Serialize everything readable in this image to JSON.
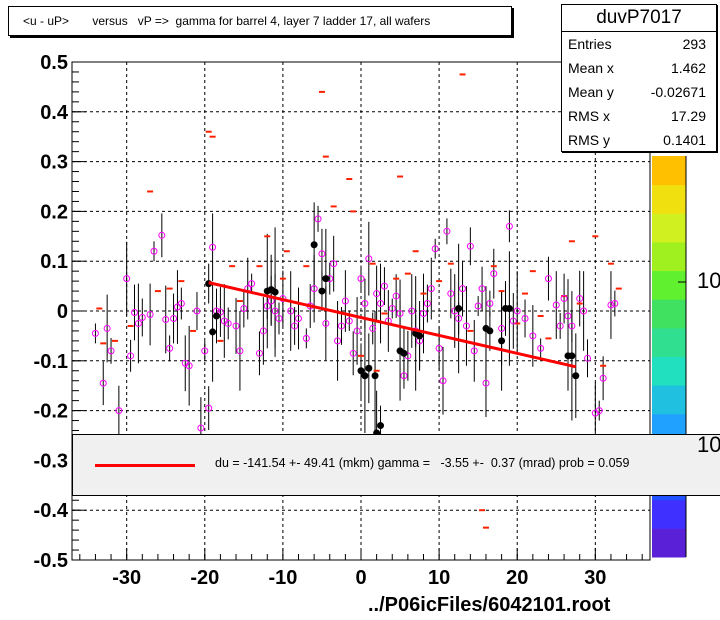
{
  "chart_data": {
    "type": "scatter",
    "title": "<u - uP>       versus   vP =>  gamma for barrel 4, layer 7 ladder 17, all wafers",
    "xlim": [
      -37,
      37
    ],
    "ylim": [
      -0.5,
      0.5
    ],
    "x_ticks": [
      "-30",
      "-20",
      "-10",
      "0",
      "10",
      "20",
      "30"
    ],
    "y_ticks": [
      "0.5",
      "0.4",
      "0.3",
      "0.2",
      "0.1",
      "0",
      "-0.1",
      "-0.2",
      "-0.3",
      "-0.4",
      "-0.5"
    ],
    "grid": true,
    "fit_line": {
      "x": [
        -19.5,
        27.5
      ],
      "y": [
        0.057,
        -0.112
      ],
      "color": "#ff0000"
    },
    "profile_points_black": [
      [
        -19.5,
        0.055
      ],
      [
        -19,
        -0.042
      ],
      [
        -18.5,
        -0.01
      ],
      [
        -12,
        0.04
      ],
      [
        -11.5,
        0.043
      ],
      [
        -11,
        0.038
      ],
      [
        -6,
        0.133
      ],
      [
        -5,
        0.04
      ],
      [
        -4.5,
        0.065
      ],
      [
        0,
        -0.12
      ],
      [
        0.5,
        -0.13
      ],
      [
        1,
        -0.115
      ],
      [
        1.8,
        -0.13
      ],
      [
        2,
        -0.245
      ],
      [
        2.5,
        -0.23
      ],
      [
        5,
        -0.08
      ],
      [
        5.5,
        -0.085
      ],
      [
        7,
        -0.045
      ],
      [
        7.5,
        -0.05
      ],
      [
        12.5,
        0.005
      ],
      [
        16,
        -0.035
      ],
      [
        16.5,
        -0.04
      ],
      [
        18,
        -0.06
      ],
      [
        18.5,
        0.005
      ],
      [
        19,
        0.005
      ],
      [
        26.5,
        -0.09
      ],
      [
        27,
        -0.09
      ],
      [
        27.5,
        -0.13
      ]
    ],
    "profile_points_magenta": [
      [
        -34,
        -0.045
      ],
      [
        -33,
        -0.145
      ],
      [
        -32.5,
        -0.035
      ],
      [
        -32,
        -0.08
      ],
      [
        -31,
        -0.2
      ],
      [
        -30,
        0.065
      ],
      [
        -29.5,
        -0.09
      ],
      [
        -29,
        -0.003
      ],
      [
        -28.5,
        -0.025
      ],
      [
        -28,
        -0.013
      ],
      [
        -27,
        -0.007
      ],
      [
        -26.5,
        0.12
      ],
      [
        -25.5,
        0.152
      ],
      [
        -25,
        -0.017
      ],
      [
        -24.5,
        -0.075
      ],
      [
        -24,
        -0.015
      ],
      [
        -23.5,
        0.008
      ],
      [
        -23,
        0.015
      ],
      [
        -22.5,
        -0.105
      ],
      [
        -22,
        -0.11
      ],
      [
        -21,
        0.0
      ],
      [
        -20.5,
        -0.235
      ],
      [
        -20,
        -0.08
      ],
      [
        -19.5,
        -0.195
      ],
      [
        -19,
        0.128
      ],
      [
        -18.5,
        0.0
      ],
      [
        -18,
        -0.002
      ],
      [
        -17.5,
        -0.02
      ],
      [
        -17,
        -0.025
      ],
      [
        -16,
        -0.03
      ],
      [
        -15.5,
        -0.08
      ],
      [
        -15,
        0.005
      ],
      [
        -14.5,
        0.045
      ],
      [
        -14,
        0.055
      ],
      [
        -13,
        -0.085
      ],
      [
        -12.5,
        -0.04
      ],
      [
        -12,
        0.01
      ],
      [
        -11.5,
        0.02
      ],
      [
        -11,
        0.0
      ],
      [
        -10.5,
        -0.015
      ],
      [
        -10,
        0.025
      ],
      [
        -9,
        0.0
      ],
      [
        -8.5,
        -0.03
      ],
      [
        -8,
        -0.015
      ],
      [
        -7,
        -0.055
      ],
      [
        -6.5,
        0.01
      ],
      [
        -6,
        0.045
      ],
      [
        -5.5,
        0.185
      ],
      [
        -5,
        0.115
      ],
      [
        -4.5,
        -0.025
      ],
      [
        -4,
        0.065
      ],
      [
        -3.5,
        0.095
      ],
      [
        -3,
        -0.06
      ],
      [
        -2.5,
        -0.03
      ],
      [
        -2,
        0.02
      ],
      [
        -1.5,
        -0.02
      ],
      [
        -1,
        -0.085
      ],
      [
        -0.5,
        -0.04
      ],
      [
        0,
        0.065
      ],
      [
        0.5,
        0.015
      ],
      [
        1,
        0.105
      ],
      [
        1.5,
        -0.035
      ],
      [
        2,
        0.035
      ],
      [
        2.5,
        0.015
      ],
      [
        3,
        0.05
      ],
      [
        3.5,
        -0.02
      ],
      [
        4,
        0.005
      ],
      [
        4.5,
        0.03
      ],
      [
        5,
        -0.005
      ],
      [
        5.5,
        -0.13
      ],
      [
        6,
        -0.09
      ],
      [
        6.5,
        0.0
      ],
      [
        7,
        -0.04
      ],
      [
        7.5,
        -0.06
      ],
      [
        8,
        -0.005
      ],
      [
        8.5,
        0.015
      ],
      [
        9,
        0.045
      ],
      [
        9.5,
        0.125
      ],
      [
        10,
        -0.075
      ],
      [
        10.5,
        -0.14
      ],
      [
        11,
        0.16
      ],
      [
        11.5,
        0.035
      ],
      [
        12,
        0.0
      ],
      [
        12.5,
        -0.015
      ],
      [
        13,
        0.045
      ],
      [
        13.5,
        -0.03
      ],
      [
        14,
        0.13
      ],
      [
        14.5,
        -0.08
      ],
      [
        15,
        0.01
      ],
      [
        15.5,
        0.045
      ],
      [
        16,
        -0.145
      ],
      [
        16.5,
        0.015
      ],
      [
        17,
        0.075
      ],
      [
        18,
        -0.035
      ],
      [
        19,
        0.17
      ],
      [
        19.5,
        -0.02
      ],
      [
        20,
        0.0
      ],
      [
        21,
        -0.015
      ],
      [
        22,
        -0.05
      ],
      [
        23,
        -0.075
      ],
      [
        24,
        0.065
      ],
      [
        25,
        0.012
      ],
      [
        25.5,
        -0.03
      ],
      [
        26,
        0.025
      ],
      [
        26.5,
        -0.01
      ],
      [
        27,
        -0.03
      ],
      [
        28,
        0.025
      ],
      [
        28.5,
        0.0
      ],
      [
        29,
        -0.095
      ],
      [
        30,
        -0.205
      ],
      [
        30.5,
        -0.2
      ],
      [
        31,
        -0.135
      ],
      [
        32,
        0.012
      ],
      [
        32.5,
        0.015
      ]
    ],
    "red_markers": [
      [
        -33.5,
        0.005
      ],
      [
        -33,
        -0.065
      ],
      [
        -31.5,
        -0.06
      ],
      [
        -29.5,
        -0.03
      ],
      [
        -27,
        0.24
      ],
      [
        -26,
        0.04
      ],
      [
        -24.5,
        0.045
      ],
      [
        -23,
        0.06
      ],
      [
        -21.5,
        -0.04
      ],
      [
        -19.5,
        0.36
      ],
      [
        -19,
        0.35
      ],
      [
        -18,
        -0.06
      ],
      [
        -16.5,
        0.09
      ],
      [
        -15.5,
        0.02
      ],
      [
        -13,
        0.09
      ],
      [
        -12,
        0.15
      ],
      [
        -10,
        0.065
      ],
      [
        -9.5,
        0.12
      ],
      [
        -7,
        0.09
      ],
      [
        -5,
        0.44
      ],
      [
        -4.5,
        0.31
      ],
      [
        -3.5,
        0.21
      ],
      [
        -1.5,
        0.265
      ],
      [
        -1,
        0.2
      ],
      [
        0,
        -0.09
      ],
      [
        1.5,
        0.095
      ],
      [
        2,
        -0.12
      ],
      [
        3,
        -0.005
      ],
      [
        4.5,
        0.065
      ],
      [
        5,
        0.27
      ],
      [
        6,
        0.075
      ],
      [
        7,
        0.12
      ],
      [
        8,
        0.035
      ],
      [
        8.5,
        -0.27
      ],
      [
        10,
        0.06
      ],
      [
        11.5,
        0.095
      ],
      [
        13,
        0.475
      ],
      [
        14,
        -0.04
      ],
      [
        15.5,
        -0.4
      ],
      [
        16,
        -0.435
      ],
      [
        17,
        0.09
      ],
      [
        18,
        0.04
      ],
      [
        20,
        -0.025
      ],
      [
        21,
        0.035
      ],
      [
        22,
        0.08
      ],
      [
        23,
        -0.01
      ],
      [
        24,
        -0.055
      ],
      [
        26,
        0.03
      ],
      [
        27,
        0.14
      ],
      [
        28,
        0.015
      ],
      [
        30,
        0.15
      ],
      [
        31,
        -0.11
      ],
      [
        32,
        0.095
      ],
      [
        33,
        0.045
      ]
    ],
    "stats": {
      "name": "duvP7017",
      "rows": [
        {
          "label": "Entries",
          "value": "293"
        },
        {
          "label": "Mean x",
          "value": "1.462"
        },
        {
          "label": "Mean y",
          "value": "-0.02671"
        },
        {
          "label": "RMS x",
          "value": "17.29"
        },
        {
          "label": "RMS y",
          "value": "0.1401"
        }
      ]
    },
    "legend": {
      "text": "du = -141.54 +- 49.41 (mkm) gamma =   -3.55 +-  0.37 (mrad) prob = 0.059"
    },
    "palette": {
      "colors": [
        "#5a20d8",
        "#4030ff",
        "#2050ff",
        "#2080ff",
        "#20a0ff",
        "#20c0e0",
        "#20e0c0",
        "#30e090",
        "#40e060",
        "#60f030",
        "#a0f020",
        "#d0f020",
        "#f0e010",
        "#ffc000"
      ],
      "labels": [
        "10",
        "10"
      ]
    },
    "footer": "../P06icFiles/6042101.root"
  }
}
